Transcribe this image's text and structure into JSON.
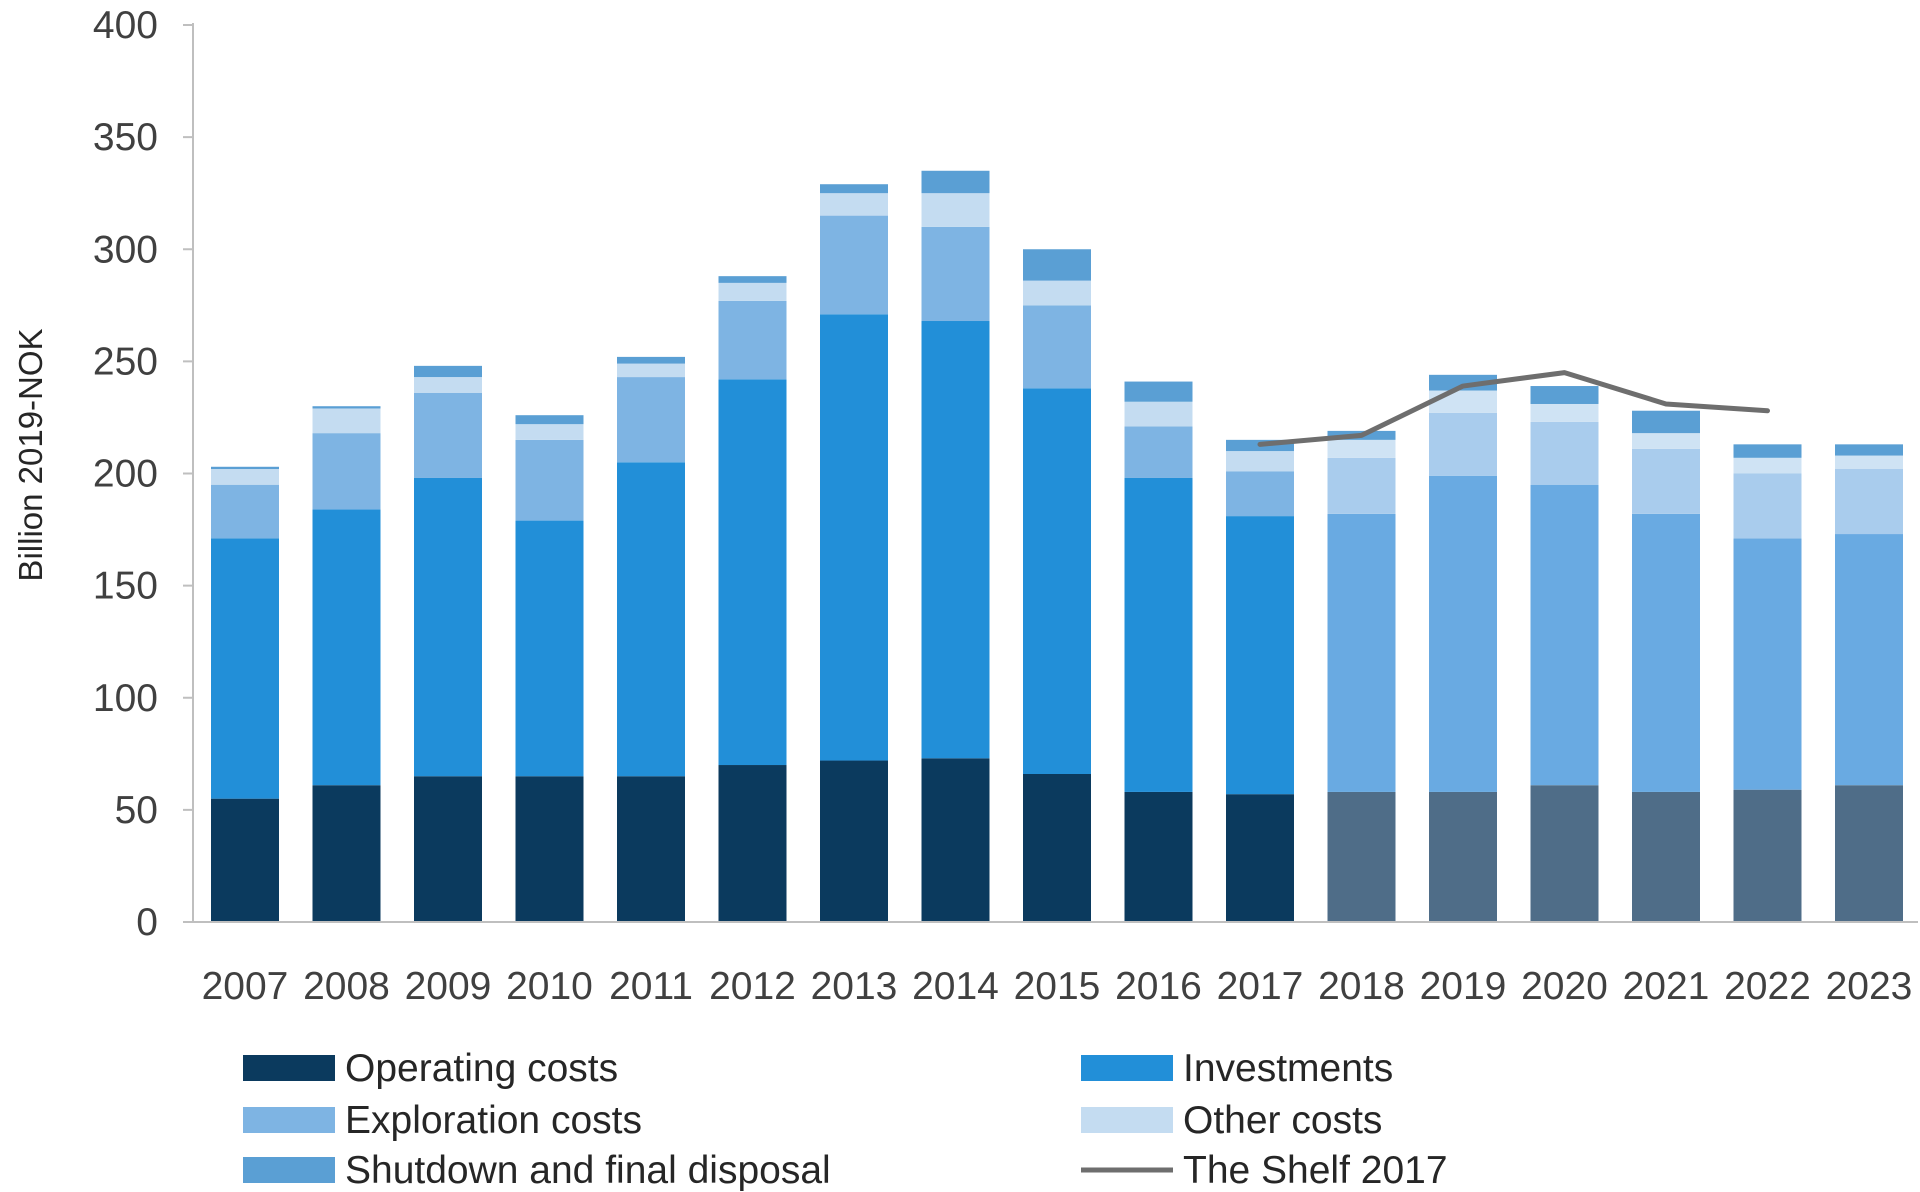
{
  "chart_data": {
    "type": "bar",
    "stacked": true,
    "title": "",
    "xlabel": "",
    "ylabel": "Billion 2019-NOK",
    "ylim": [
      0,
      400
    ],
    "yticks": [
      0,
      50,
      100,
      150,
      200,
      250,
      300,
      350,
      400
    ],
    "grid": false,
    "legend_position": "bottom",
    "categories": [
      "2007",
      "2008",
      "2009",
      "2010",
      "2011",
      "2012",
      "2013",
      "2014",
      "2015",
      "2016",
      "2017",
      "2018",
      "2019",
      "2020",
      "2021",
      "2022",
      "2023"
    ],
    "series": [
      {
        "name": "Operating costs",
        "color": "#0b3a5e",
        "forecast_color": "#4f6d88",
        "values": [
          55,
          61,
          65,
          65,
          65,
          70,
          72,
          73,
          66,
          58,
          57,
          58,
          58,
          61,
          58,
          59,
          61
        ]
      },
      {
        "name": "Investments",
        "color": "#228fd8",
        "forecast_color": "#69aae2",
        "values": [
          116,
          123,
          133,
          114,
          140,
          172,
          199,
          195,
          172,
          140,
          124,
          124,
          141,
          134,
          124,
          112,
          112
        ]
      },
      {
        "name": "Exploration costs",
        "color": "#7eb4e3",
        "forecast_color": "#a9cced",
        "values": [
          24,
          34,
          38,
          36,
          38,
          35,
          44,
          42,
          37,
          23,
          20,
          25,
          28,
          28,
          29,
          29,
          29
        ]
      },
      {
        "name": "Other costs",
        "color": "#c4dcf1",
        "forecast_color": "#cfe3f4",
        "values": [
          7,
          11,
          7,
          7,
          6,
          8,
          10,
          15,
          11,
          11,
          9,
          8,
          10,
          8,
          7,
          7,
          6
        ]
      },
      {
        "name": "Shutdown and final disposal",
        "color": "#5a9fd4",
        "forecast_color": "#5a9fd4",
        "values": [
          1,
          1,
          5,
          4,
          3,
          3,
          4,
          10,
          14,
          9,
          5,
          4,
          7,
          8,
          10,
          6,
          5
        ]
      }
    ],
    "forecast_from": "2018",
    "line_series": {
      "name": "The Shelf  2017",
      "color": "#6e6e6e",
      "x": [
        "2017",
        "2018",
        "2019",
        "2020",
        "2021",
        "2022"
      ],
      "values": [
        213,
        217,
        239,
        245,
        231,
        228
      ]
    },
    "legend": [
      {
        "label": "Operating costs",
        "kind": "box",
        "color": "#0b3a5e"
      },
      {
        "label": "Investments",
        "kind": "box",
        "color": "#228fd8"
      },
      {
        "label": "Exploration costs",
        "kind": "box",
        "color": "#7eb4e3"
      },
      {
        "label": "Other costs",
        "kind": "box",
        "color": "#c4dcf1"
      },
      {
        "label": "Shutdown and final disposal",
        "kind": "box",
        "color": "#5a9fd4"
      },
      {
        "label": "The Shelf  2017",
        "kind": "line",
        "color": "#6e6e6e"
      }
    ]
  }
}
